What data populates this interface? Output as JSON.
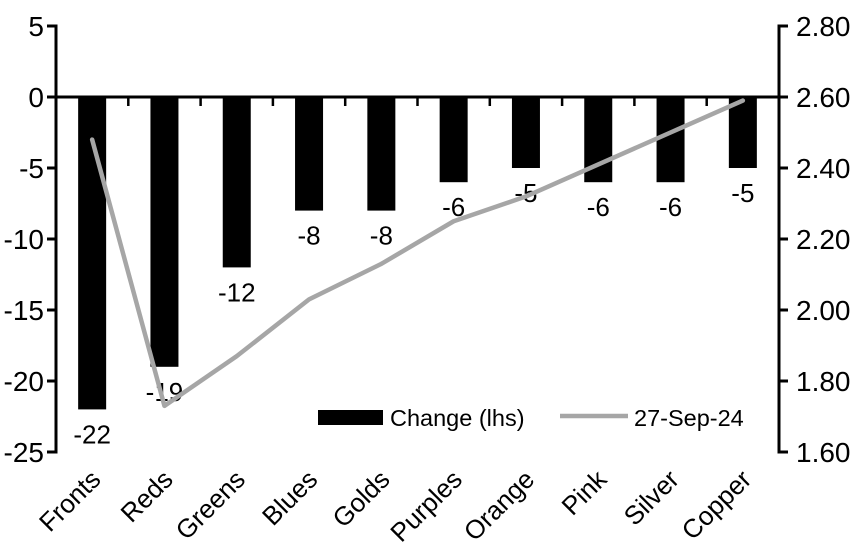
{
  "chart_data": {
    "type": "bar+line",
    "categories": [
      "Fronts",
      "Reds",
      "Greens",
      "Blues",
      "Golds",
      "Purples",
      "Orange",
      "Pink",
      "Silver",
      "Copper"
    ],
    "series": [
      {
        "name": "Change (lhs)",
        "type": "bar",
        "axis": "left",
        "color": "#000000",
        "values": [
          -22,
          -19,
          -12,
          -8,
          -8,
          -6,
          -5,
          -6,
          -6,
          -5
        ]
      },
      {
        "name": "27-Sep-24",
        "type": "line",
        "axis": "right",
        "color": "#a6a6a6",
        "values": [
          2.48,
          1.73,
          1.87,
          2.03,
          2.13,
          2.25,
          2.32,
          2.41,
          2.5,
          2.59
        ]
      }
    ],
    "bar_labels": [
      "-22",
      "-19",
      "-12",
      "-8",
      "-8",
      "-6",
      "-5",
      "-6",
      "-6",
      "-5"
    ],
    "left_axis": {
      "min": -25,
      "max": 5,
      "tick_step": 5,
      "ticks": [
        "5",
        "0",
        "-5",
        "-10",
        "-15",
        "-20",
        "-25"
      ]
    },
    "right_axis": {
      "min": 1.6,
      "max": 2.8,
      "tick_step": 0.2,
      "ticks": [
        "2.80",
        "2.60",
        "2.40",
        "2.20",
        "2.00",
        "1.80",
        "1.60"
      ]
    },
    "legend": {
      "position": "inside-bottom",
      "items": [
        {
          "label": "Change (lhs)",
          "swatch": "bar",
          "color": "#000000"
        },
        {
          "label": "27-Sep-24",
          "swatch": "line",
          "color": "#a6a6a6"
        }
      ]
    },
    "grid": false,
    "axis_color": "#000000",
    "background": "#ffffff"
  }
}
